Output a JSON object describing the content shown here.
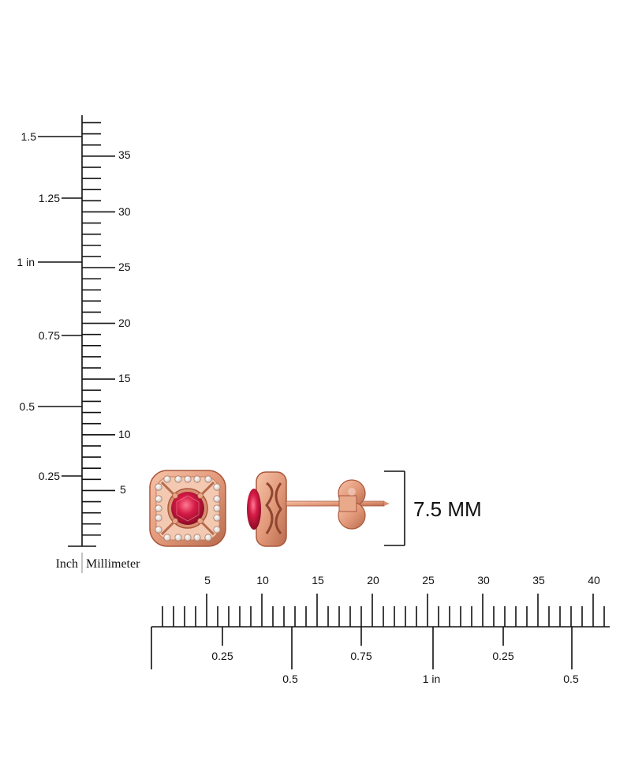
{
  "vertical_scale": {
    "inch_labels": [
      "0.25",
      "0.5",
      "0.75",
      "1 in",
      "1.25",
      "1.5"
    ],
    "mm_labels": [
      "5",
      "10",
      "15",
      "20",
      "25",
      "30",
      "35"
    ],
    "unit_inch": "Inch",
    "unit_mm": "Millimeter"
  },
  "horizontal_scale": {
    "mm_labels": [
      "5",
      "10",
      "15",
      "20",
      "25",
      "30",
      "35",
      "40"
    ],
    "inch_labels": [
      "0.25",
      "0.5",
      "0.75",
      "1 in",
      "0.25",
      "0.5"
    ]
  },
  "dimension": {
    "label": "7.5 MM"
  },
  "product": {
    "metal_color": "#e6a184",
    "metal_dark": "#b86a4c",
    "gem_color": "#c8143c",
    "gem_highlight": "#ff6b86",
    "diamond_color": "#f4f1ee"
  }
}
